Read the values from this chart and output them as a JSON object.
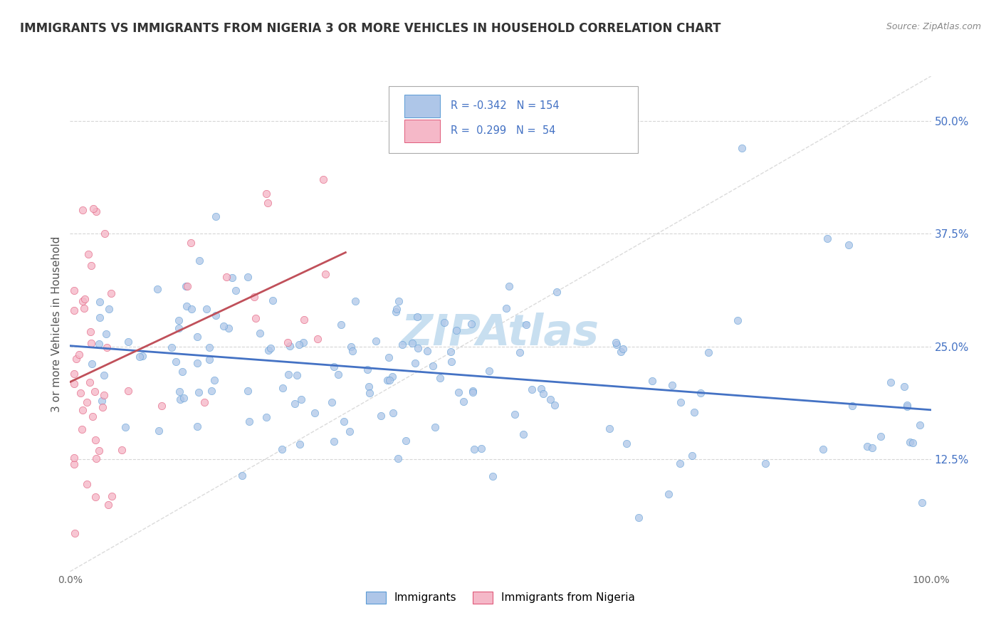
{
  "title": "IMMIGRANTS VS IMMIGRANTS FROM NIGERIA 3 OR MORE VEHICLES IN HOUSEHOLD CORRELATION CHART",
  "source_text": "Source: ZipAtlas.com",
  "ylabel": "3 or more Vehicles in Household",
  "xlim": [
    0.0,
    1.0
  ],
  "ylim": [
    0.0,
    0.55
  ],
  "xtick_positions": [
    0.0,
    1.0
  ],
  "xtick_labels": [
    "0.0%",
    "100.0%"
  ],
  "ytick_values": [
    0.125,
    0.25,
    0.375,
    0.5
  ],
  "ytick_labels": [
    "12.5%",
    "25.0%",
    "37.5%",
    "50.0%"
  ],
  "legend_label1": "Immigrants",
  "legend_label2": "Immigrants from Nigeria",
  "R1": -0.342,
  "N1": 154,
  "R2": 0.299,
  "N2": 54,
  "color_blue": "#aec6e8",
  "color_pink": "#f5b8c8",
  "edge_blue": "#5b9bd5",
  "edge_pink": "#e05a7a",
  "line_blue": "#4472c4",
  "line_pink": "#c0505a",
  "grid_color": "#cccccc",
  "watermark_color": "#c8dff0",
  "background": "#ffffff",
  "title_color": "#333333",
  "tick_color_left": "#666666",
  "tick_color_right": "#4472c4",
  "source_color": "#888888"
}
